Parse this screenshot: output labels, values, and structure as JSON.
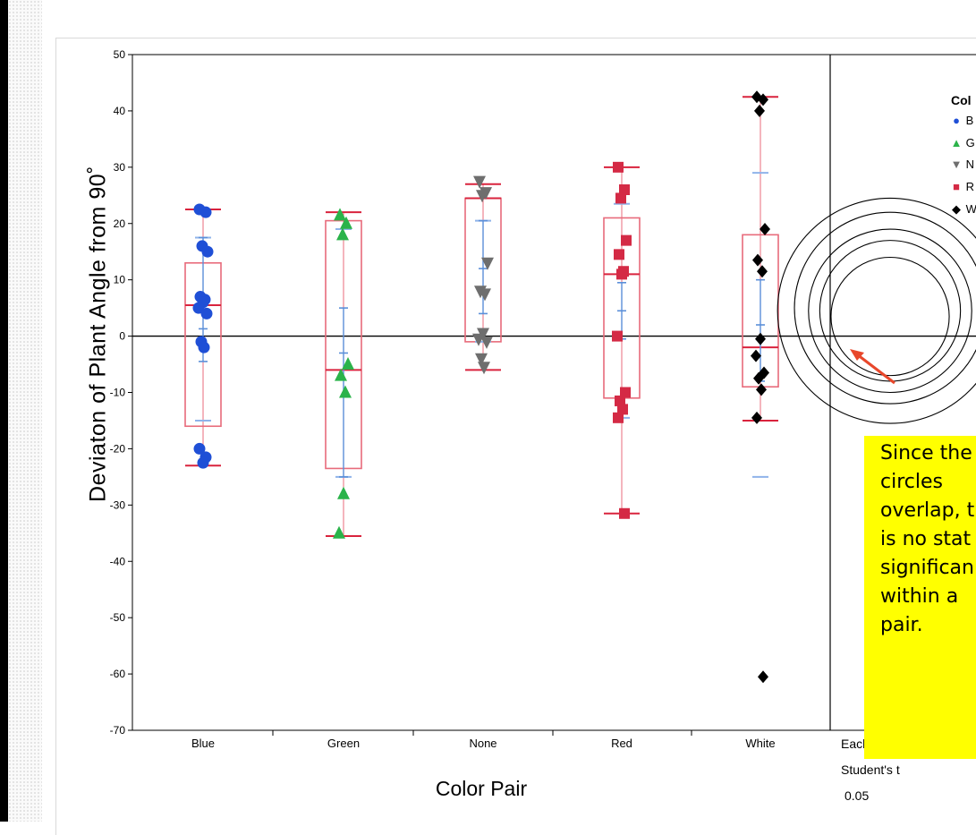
{
  "chart_data": {
    "type": "box-scatter",
    "xlabel": "Color Pair",
    "ylabel": "Deviaton of Plant Angle from 90˚",
    "ylim": [
      -70,
      50
    ],
    "yticks": [
      50,
      40,
      30,
      20,
      10,
      0,
      -10,
      -20,
      -30,
      -40,
      -50,
      -60,
      -70
    ],
    "grid": false,
    "categories": [
      "Blue",
      "Green",
      "None",
      "Red",
      "White"
    ],
    "series": [
      {
        "name": "Blue",
        "color": "#1f4fd6",
        "marker": "circle",
        "box": {
          "q1": -16,
          "median": 5.5,
          "q3": 13,
          "whisker_low": -23,
          "whisker_high": 22.5
        },
        "mean": 1.3,
        "ci": [
          -4.5,
          17.5
        ],
        "sd_band": [
          -15,
          17.5
        ],
        "points": [
          22.5,
          22,
          16,
          15,
          7,
          6.5,
          6,
          5,
          4,
          -1,
          -2,
          -20,
          -21.5,
          -22.5
        ]
      },
      {
        "name": "Green",
        "color": "#2bb34a",
        "marker": "triangle-up",
        "box": {
          "q1": -23.5,
          "median": -6,
          "q3": 20.5,
          "whisker_low": -35.5,
          "whisker_high": 22
        },
        "mean": -3,
        "ci": [
          -25,
          5
        ],
        "sd_band": [
          -25,
          19
        ],
        "points": [
          21.5,
          20,
          18,
          -5,
          -7,
          -10,
          -28,
          -35
        ]
      },
      {
        "name": "None",
        "color": "#6e6e6e",
        "marker": "triangle-down",
        "box": {
          "q1": -1,
          "median": 24.5,
          "q3": 24.5,
          "whisker_low": -6,
          "whisker_high": 27
        },
        "mean": 12,
        "ci": [
          4,
          20.5
        ],
        "sd_band": [
          -1,
          20.5
        ],
        "points": [
          27.5,
          25.5,
          25,
          13,
          8,
          7.5,
          0.5,
          -0.5,
          -1,
          -4,
          -5.5
        ]
      },
      {
        "name": "Red",
        "color": "#d42a45",
        "marker": "square",
        "box": {
          "q1": -11,
          "median": 11,
          "q3": 21,
          "whisker_low": -31.5,
          "whisker_high": 30
        },
        "mean": 4.5,
        "ci": [
          -0.5,
          9.5
        ],
        "sd_band": [
          -14.5,
          23.5
        ],
        "points": [
          30,
          26,
          24.5,
          17,
          14.5,
          11.5,
          11,
          0,
          -10,
          -11.5,
          -13,
          -14.5,
          -31.5
        ]
      },
      {
        "name": "White",
        "color": "#000000",
        "marker": "diamond",
        "box": {
          "q1": -9,
          "median": -2,
          "q3": 18,
          "whisker_low": -15,
          "whisker_high": 42.5
        },
        "mean": 2,
        "ci": [
          -8,
          10
        ],
        "sd_band": [
          -25,
          29
        ],
        "points": [
          42.5,
          42,
          40,
          19,
          13.5,
          11.5,
          -0.5,
          -3.5,
          -6.5,
          -7.5,
          -9.5,
          -14.5,
          -60.5
        ]
      }
    ],
    "comparison_circles": [
      {
        "center": 4.5,
        "radius": 20
      },
      {
        "center": 5,
        "radius": 17
      },
      {
        "center": 4.5,
        "radius": 14.5
      },
      {
        "center": 4.5,
        "radius": 12.5
      },
      {
        "center": 3.5,
        "radius": 10.5
      }
    ],
    "comparison_label": [
      "Each Pair",
      "Student's t",
      "0.05"
    ],
    "legend": {
      "position": "right",
      "title": "Col",
      "entries": [
        "B",
        "G",
        "N",
        "R",
        "W"
      ]
    }
  },
  "annotation": {
    "lines": [
      "Since the",
      "circles",
      "overlap, t",
      "is no stat",
      "significan",
      "within a",
      "pair."
    ]
  }
}
